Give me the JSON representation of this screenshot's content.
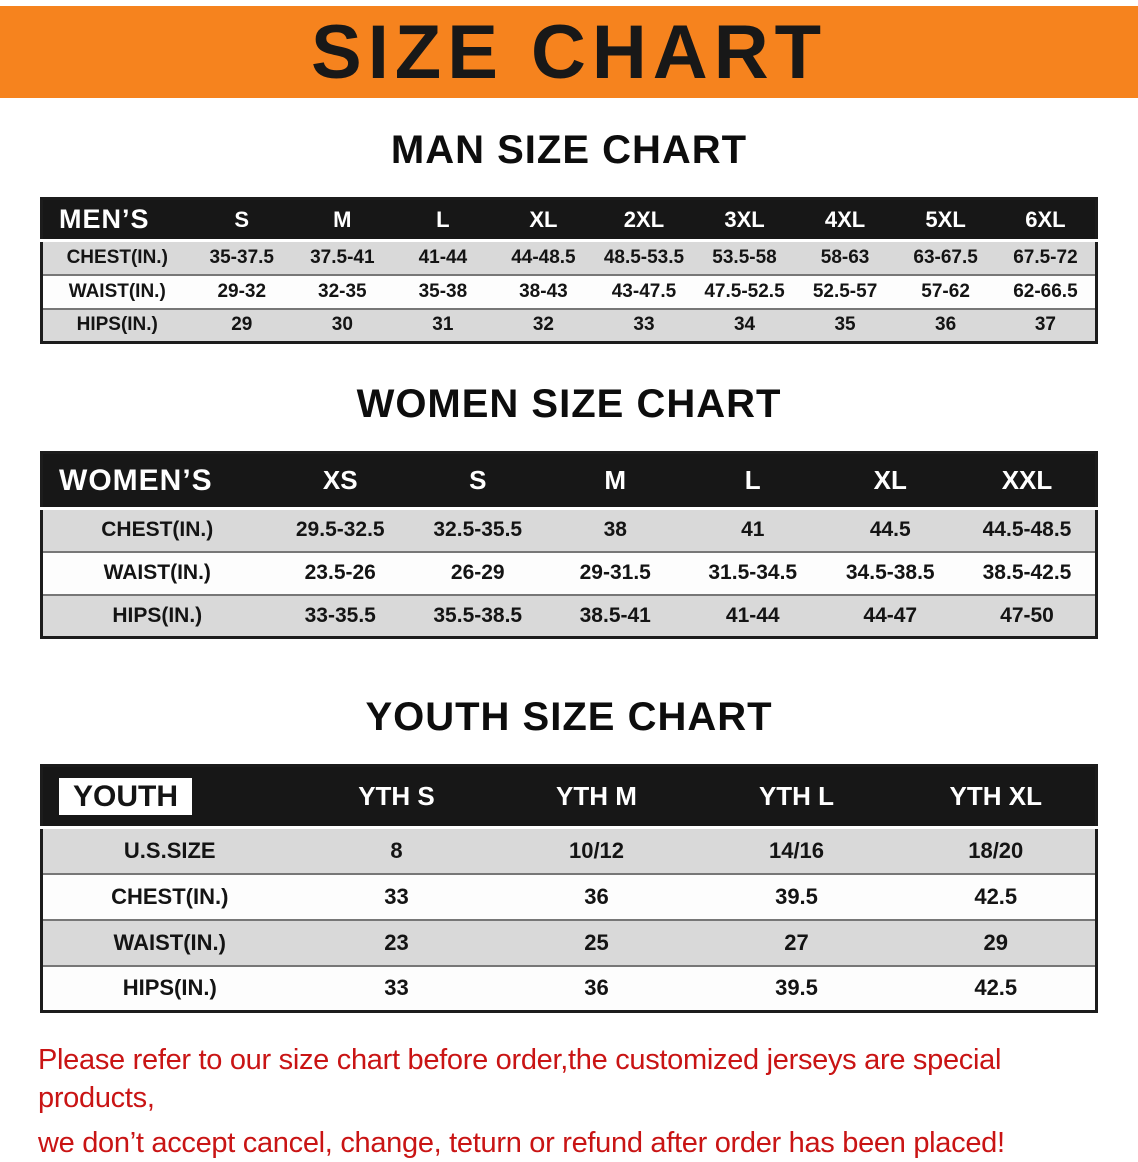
{
  "banner": {
    "title": "SIZE CHART",
    "bg_color": "#F6831E",
    "title_color": "#181818"
  },
  "sections": [
    {
      "id": "men",
      "heading": "MAN SIZE CHART",
      "table": {
        "header": [
          "MEN’S",
          "S",
          "M",
          "L",
          "XL",
          "2XL",
          "3XL",
          "4XL",
          "5XL",
          "6XL"
        ],
        "rows": [
          [
            "CHEST(IN.)",
            "35-37.5",
            "37.5-41",
            "41-44",
            "44-48.5",
            "48.5-53.5",
            "53.5-58",
            "58-63",
            "63-67.5",
            "67.5-72"
          ],
          [
            "WAIST(IN.)",
            "29-32",
            "32-35",
            "35-38",
            "38-43",
            "43-47.5",
            "47.5-52.5",
            "52.5-57",
            "57-62",
            "62-66.5"
          ],
          [
            "HIPS(IN.)",
            "29",
            "30",
            "31",
            "32",
            "33",
            "34",
            "35",
            "36",
            "37"
          ]
        ]
      }
    },
    {
      "id": "women",
      "heading": "WOMEN SIZE CHART",
      "table": {
        "header": [
          "WOMEN’S",
          "XS",
          "S",
          "M",
          "L",
          "XL",
          "XXL"
        ],
        "rows": [
          [
            "CHEST(IN.)",
            "29.5-32.5",
            "32.5-35.5",
            "38",
            "41",
            "44.5",
            "44.5-48.5"
          ],
          [
            "WAIST(IN.)",
            "23.5-26",
            "26-29",
            "29-31.5",
            "31.5-34.5",
            "34.5-38.5",
            "38.5-42.5"
          ],
          [
            "HIPS(IN.)",
            "33-35.5",
            "35.5-38.5",
            "38.5-41",
            "41-44",
            "44-47",
            "47-50"
          ]
        ]
      }
    },
    {
      "id": "youth",
      "heading": "YOUTH SIZE CHART",
      "table": {
        "first_header_inverted": true,
        "header": [
          "YOUTH",
          "YTH S",
          "YTH M",
          "YTH L",
          "YTH XL"
        ],
        "rows": [
          [
            "U.S.SIZE",
            "8",
            "10/12",
            "14/16",
            "18/20"
          ],
          [
            "CHEST(IN.)",
            "33",
            "36",
            "39.5",
            "42.5"
          ],
          [
            "WAIST(IN.)",
            "23",
            "25",
            "27",
            "29"
          ],
          [
            "HIPS(IN.)",
            "33",
            "36",
            "39.5",
            "42.5"
          ]
        ]
      }
    }
  ],
  "notice": {
    "color": "#C91414",
    "lines": [
      "Please refer to our size chart before order,the customized jerseys are special products,",
      "we don’t accept cancel, change, teturn or refund after order has been placed!"
    ]
  },
  "colors": {
    "table_header_bg": "#171717",
    "row_shade": "#D9D9D9",
    "table_border": "#1C1C1C"
  }
}
